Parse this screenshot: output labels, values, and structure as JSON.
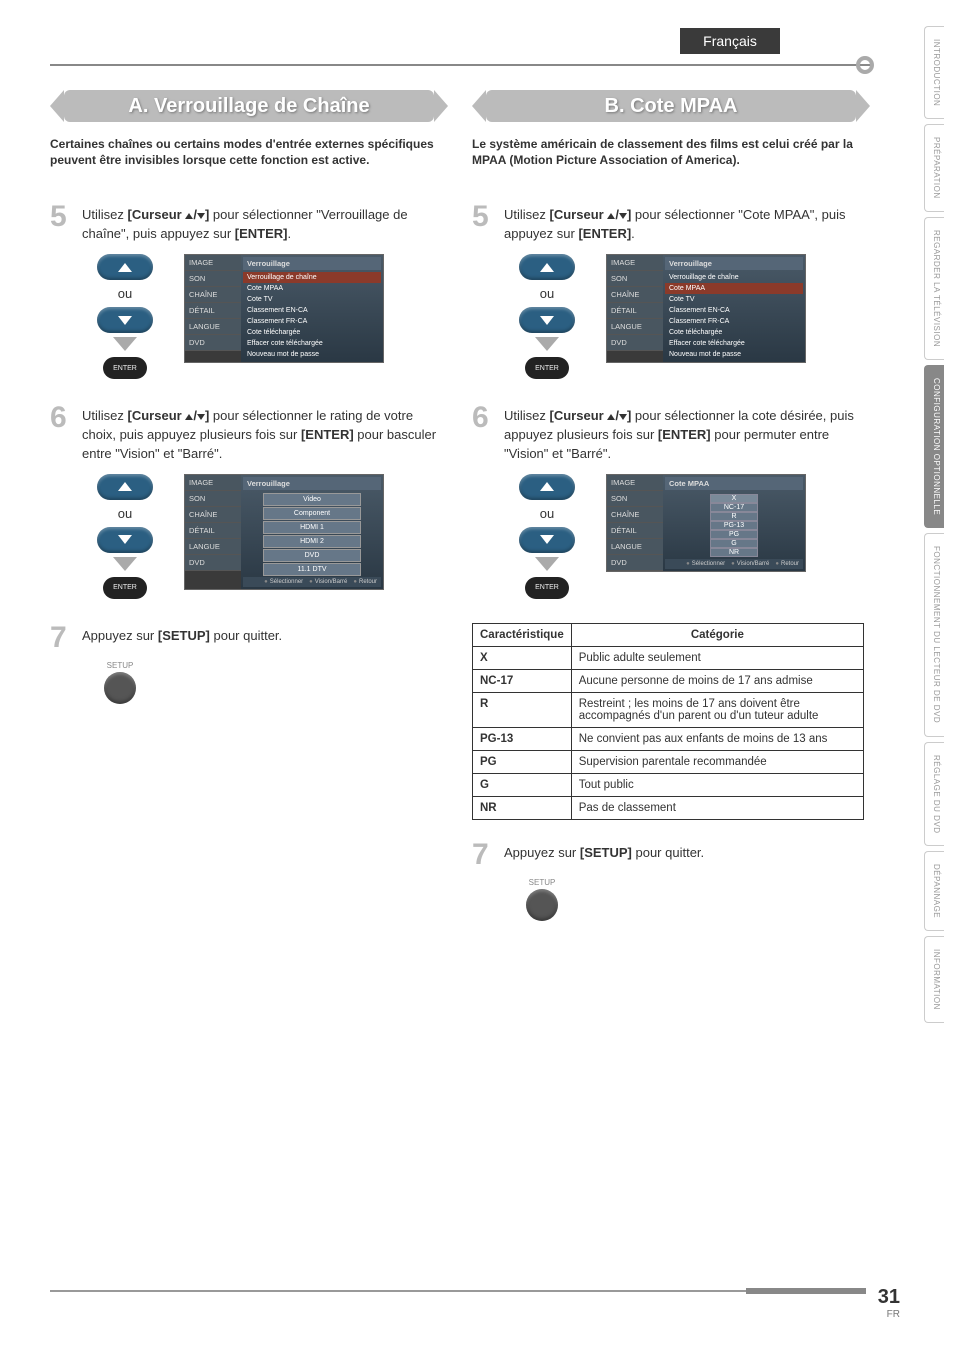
{
  "lang_badge": "Français",
  "page_number": "31",
  "page_lang": "FR",
  "side_tabs": [
    {
      "label": "INTRODUCTION",
      "active": false
    },
    {
      "label": "PRÉPARATION",
      "active": false
    },
    {
      "label": "REGARDER LA TÉLÉVISION",
      "active": false
    },
    {
      "label": "CONFIGURATION OPTIONNELLE",
      "active": true
    },
    {
      "label": "FONCTIONNEMENT DU LECTEUR DE DVD",
      "active": false
    },
    {
      "label": "RÉGLAGE DU DVD",
      "active": false
    },
    {
      "label": "DÉPANNAGE",
      "active": false
    },
    {
      "label": "INFORMATION",
      "active": false
    }
  ],
  "left": {
    "title": "A. Verrouillage de Chaîne",
    "intro": "Certaines chaînes ou certains modes d'entrée externes spécifiques peuvent être invisibles lorsque cette fonction est active.",
    "step5_pre": "Utilisez ",
    "step5_b1": "[Curseur ",
    "step5_b2": "]",
    "step5_post": " pour sélectionner \"Verrouillage de chaîne\", puis appuyez sur ",
    "step5_b3": "[ENTER]",
    "step5_end": ".",
    "step6_pre": "Utilisez ",
    "step6_b1": "[Curseur ",
    "step6_b2": "]",
    "step6_post": " pour sélectionner le rating de votre choix, puis appuyez plusieurs fois sur ",
    "step6_b3": "[ENTER]",
    "step6_end": " pour basculer entre \"Vision\" et \"Barré\".",
    "step7_pre": "Appuyez sur ",
    "step7_b": "[SETUP]",
    "step7_post": " pour quitter.",
    "ou": "ou",
    "enter": "ENTER",
    "setup_label": "SETUP",
    "menu1": {
      "header": "Verrouillage",
      "sidebar": [
        "IMAGE",
        "SON",
        "CHAÎNE",
        "DÉTAIL",
        "LANGUE",
        "DVD"
      ],
      "rows": [
        {
          "t": "Verrouillage de chaîne",
          "hl": true
        },
        {
          "t": "Cote MPAA"
        },
        {
          "t": "Cote TV"
        },
        {
          "t": "Classement EN-CA"
        },
        {
          "t": "Classement FR-CA"
        },
        {
          "t": "Cote téléchargée"
        },
        {
          "t": "Effacer cote téléchargée"
        },
        {
          "t": "Nouveau mot de passe"
        }
      ]
    },
    "menu2": {
      "header": "Verrouillage",
      "sidebar": [
        "IMAGE",
        "SON",
        "CHAÎNE",
        "DÉTAIL",
        "LANGUE",
        "DVD"
      ],
      "rows": [
        "Video",
        "Component",
        "HDMI 1",
        "HDMI 2",
        "DVD",
        "11.1 DTV"
      ],
      "footer": [
        "Sélectionner",
        "Vision/Barré",
        "Retour"
      ]
    }
  },
  "right": {
    "title": "B. Cote MPAA",
    "intro": "Le système américain de classement des films est celui créé par la MPAA (Motion Picture Association of America).",
    "step5_pre": "Utilisez ",
    "step5_b1": "[Curseur ",
    "step5_b2": "]",
    "step5_post": " pour sélectionner \"Cote MPAA\", puis appuyez sur ",
    "step5_b3": "[ENTER]",
    "step5_end": ".",
    "step6_pre": "Utilisez ",
    "step6_b1": "[Curseur ",
    "step6_b2": "]",
    "step6_post": " pour sélectionner la cote désirée, puis appuyez plusieurs fois sur ",
    "step6_b3": "[ENTER]",
    "step6_end": " pour permuter entre \"Vision\" et \"Barré\".",
    "step7_pre": "Appuyez sur ",
    "step7_b": "[SETUP]",
    "step7_post": " pour quitter.",
    "ou": "ou",
    "enter": "ENTER",
    "setup_label": "SETUP",
    "menu1": {
      "header": "Verrouillage",
      "sidebar": [
        "IMAGE",
        "SON",
        "CHAÎNE",
        "DÉTAIL",
        "LANGUE",
        "DVD"
      ],
      "rows": [
        {
          "t": "Verrouillage de chaîne"
        },
        {
          "t": "Cote MPAA",
          "hl": true
        },
        {
          "t": "Cote TV"
        },
        {
          "t": "Classement EN-CA"
        },
        {
          "t": "Classement FR-CA"
        },
        {
          "t": "Cote téléchargée"
        },
        {
          "t": "Effacer cote téléchargée"
        },
        {
          "t": "Nouveau mot de passe"
        }
      ]
    },
    "menu2": {
      "header": "Cote MPAA",
      "sidebar": [
        "IMAGE",
        "SON",
        "CHAÎNE",
        "DÉTAIL",
        "LANGUE",
        "DVD"
      ],
      "ratings": [
        "X",
        "NC-17",
        "R",
        "PG-13",
        "PG",
        "G",
        "NR"
      ],
      "footer": [
        "Sélectionner",
        "Vision/Barré",
        "Retour"
      ]
    },
    "table": {
      "h1": "Caractéristique",
      "h2": "Catégorie",
      "rows": [
        [
          "X",
          "Public adulte seulement"
        ],
        [
          "NC-17",
          "Aucune personne de moins de 17 ans admise"
        ],
        [
          "R",
          "Restreint ; les moins de 17 ans doivent être accompagnés d'un parent ou d'un tuteur adulte"
        ],
        [
          "PG-13",
          "Ne convient pas aux enfants de moins de 13 ans"
        ],
        [
          "PG",
          "Supervision parentale recommandée"
        ],
        [
          "G",
          "Tout public"
        ],
        [
          "NR",
          "Pas de classement"
        ]
      ]
    }
  }
}
